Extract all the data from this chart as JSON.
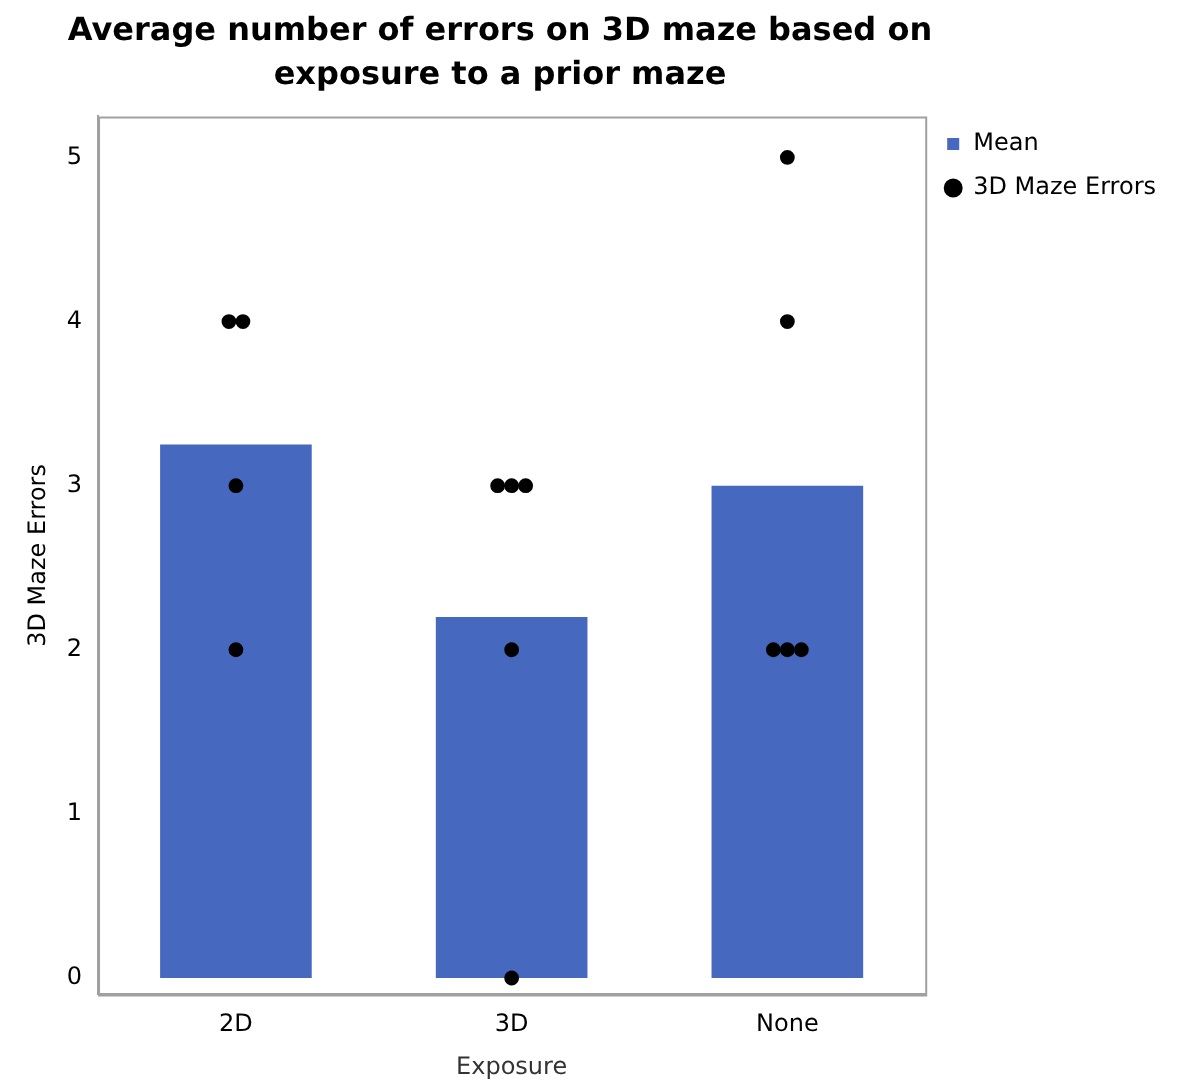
{
  "chart_data": {
    "type": "bar",
    "title": "Average number of errors on 3D maze based on exposure to a prior maze",
    "xlabel": "Exposure",
    "ylabel": "3D Maze Errors",
    "categories": [
      "2D",
      "3D",
      "None"
    ],
    "ylim": [
      -0.1,
      5.25
    ],
    "yticks": [
      0,
      1,
      2,
      3,
      4,
      5
    ],
    "grid": false,
    "legend": "top right",
    "series": [
      {
        "name": "Mean",
        "color": "#4669bf",
        "values": [
          3.25,
          2.2,
          3
        ]
      },
      {
        "name": "3D Maze Errors",
        "type": "scatter",
        "color": "#000000",
        "marker": "circle",
        "x": [
          "2D",
          "2D",
          "2D",
          "2D",
          "3D",
          "3D",
          "3D",
          "3D",
          "3D",
          "None",
          "None",
          "None",
          "None",
          "None"
        ],
        "values": [
          4,
          4,
          3,
          2,
          3,
          3,
          3,
          2,
          0,
          5,
          4,
          2,
          2,
          2
        ]
      }
    ]
  }
}
